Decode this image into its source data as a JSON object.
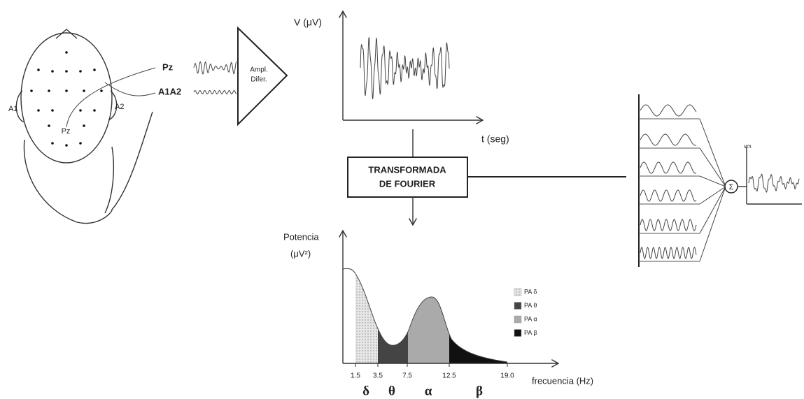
{
  "head": {
    "electrode_label": "Pz",
    "left_ear": "A1",
    "right_ear": "A2"
  },
  "channels": [
    "Pz",
    "A1A2"
  ],
  "amplifier": {
    "line1": "Ampl.",
    "line2": "Difer."
  },
  "time_plot": {
    "y_label": "V (μV)",
    "x_label": "t (seg)"
  },
  "transform": {
    "line1": "TRANSFORMADA",
    "line2": "DE FOURIER"
  },
  "spectrum": {
    "y_label_1": "Potencia",
    "y_label_2": "(μV²)",
    "x_label": "frecuencia (Hz)",
    "ticks": [
      "1.5",
      "3.5",
      "7.5",
      "12.5",
      "19.0"
    ],
    "bands": [
      "δ",
      "θ",
      "α",
      "β"
    ],
    "legend": [
      "PA δ",
      "PA θ",
      "PA α",
      "PA β"
    ]
  },
  "composition": {
    "sum_symbol": "Σ",
    "output_label": "vm"
  }
}
